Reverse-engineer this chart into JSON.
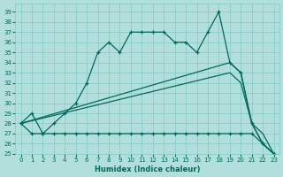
{
  "bg_color": "#b2dfdb",
  "grid_color": "#80cbc4",
  "line_color": "#00695c",
  "xlabel": "Humidex (Indice chaleur)",
  "xlim": [
    -0.5,
    23.5
  ],
  "ylim": [
    25,
    39.8
  ],
  "yticks": [
    25,
    26,
    27,
    28,
    29,
    30,
    31,
    32,
    33,
    34,
    35,
    36,
    37,
    38,
    39
  ],
  "xticks": [
    0,
    1,
    2,
    3,
    4,
    5,
    6,
    7,
    8,
    9,
    10,
    11,
    12,
    13,
    14,
    15,
    16,
    17,
    18,
    19,
    20,
    21,
    22,
    23
  ],
  "lines": [
    {
      "x": [
        0,
        1,
        2,
        3,
        4,
        5,
        6,
        7,
        8,
        9,
        10,
        11,
        12,
        13,
        14,
        15,
        16,
        17,
        18,
        19,
        20,
        21,
        22,
        23
      ],
      "y": [
        28,
        29,
        27,
        28,
        29,
        30,
        32,
        35,
        36,
        35,
        37,
        37,
        37,
        37,
        36,
        36,
        35,
        37,
        39,
        34,
        33,
        28,
        26,
        25
      ],
      "marker": "+"
    },
    {
      "x": [
        0,
        19,
        20,
        21,
        22,
        23
      ],
      "y": [
        28,
        34,
        33,
        28,
        26,
        25
      ],
      "marker": null
    },
    {
      "x": [
        0,
        19,
        20,
        21,
        22,
        23
      ],
      "y": [
        28,
        33,
        32,
        28,
        27,
        25
      ],
      "marker": null
    },
    {
      "x": [
        0,
        1,
        2,
        3,
        4,
        5,
        6,
        7,
        8,
        9,
        10,
        11,
        12,
        13,
        14,
        15,
        16,
        17,
        18,
        19,
        20,
        21,
        22,
        23
      ],
      "y": [
        28,
        27,
        27,
        27,
        27,
        27,
        27,
        27,
        27,
        27,
        27,
        27,
        27,
        27,
        27,
        27,
        27,
        27,
        27,
        27,
        27,
        27,
        26,
        25
      ],
      "marker": "+"
    }
  ]
}
